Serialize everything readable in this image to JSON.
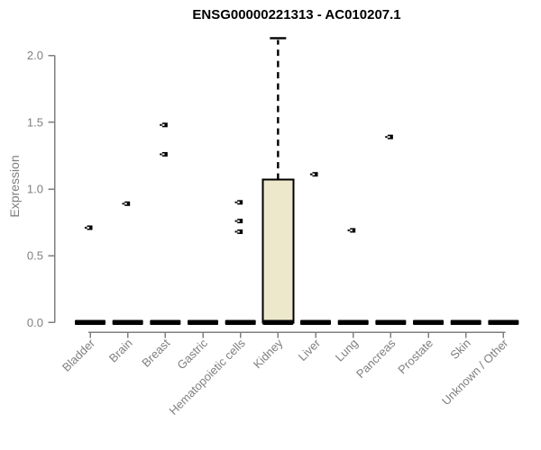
{
  "title": "ENSG00000221313 - AC010207.1",
  "chart_data": {
    "type": "boxplot",
    "title": "ENSG00000221313 - AC010207.1",
    "xlabel": "",
    "ylabel": "Expression",
    "ylim": [
      0.0,
      2.13
    ],
    "yticks": [
      0.0,
      0.5,
      1.0,
      1.5,
      2.0
    ],
    "ytick_labels": [
      "0.0",
      "0.5",
      "1.0",
      "1.5",
      "2.0"
    ],
    "grid": "off",
    "legend": "none",
    "categories": [
      "Bladder",
      "Brain",
      "Breast",
      "Gastric",
      "Hematopoietic cells",
      "Kidney",
      "Liver",
      "Lung",
      "Pancreas",
      "Prostate",
      "Skin",
      "Unknown / Other"
    ],
    "boxes": [
      {
        "category": "Bladder",
        "whisker_low": 0,
        "q1": 0,
        "median": 0,
        "q3": 0,
        "whisker_high": 0,
        "outliers": [
          0.71
        ]
      },
      {
        "category": "Brain",
        "whisker_low": 0,
        "q1": 0,
        "median": 0,
        "q3": 0,
        "whisker_high": 0,
        "outliers": [
          0.89
        ]
      },
      {
        "category": "Breast",
        "whisker_low": 0,
        "q1": 0,
        "median": 0,
        "q3": 0,
        "whisker_high": 0,
        "outliers": [
          1.48,
          1.26
        ]
      },
      {
        "category": "Gastric",
        "whisker_low": 0,
        "q1": 0,
        "median": 0,
        "q3": 0,
        "whisker_high": 0,
        "outliers": []
      },
      {
        "category": "Hematopoietic cells",
        "whisker_low": 0,
        "q1": 0,
        "median": 0,
        "q3": 0,
        "whisker_high": 0,
        "outliers": [
          0.9,
          0.76,
          0.68
        ]
      },
      {
        "category": "Kidney",
        "whisker_low": 0,
        "q1": 0,
        "median": 0,
        "q3": 1.07,
        "whisker_high": 2.13,
        "outliers": []
      },
      {
        "category": "Liver",
        "whisker_low": 0,
        "q1": 0,
        "median": 0,
        "q3": 0,
        "whisker_high": 0,
        "outliers": [
          1.11
        ]
      },
      {
        "category": "Lung",
        "whisker_low": 0,
        "q1": 0,
        "median": 0,
        "q3": 0,
        "whisker_high": 0,
        "outliers": [
          0.69
        ]
      },
      {
        "category": "Pancreas",
        "whisker_low": 0,
        "q1": 0,
        "median": 0,
        "q3": 0,
        "whisker_high": 0,
        "outliers": [
          1.39
        ]
      },
      {
        "category": "Prostate",
        "whisker_low": 0,
        "q1": 0,
        "median": 0,
        "q3": 0,
        "whisker_high": 0,
        "outliers": []
      },
      {
        "category": "Skin",
        "whisker_low": 0,
        "q1": 0,
        "median": 0,
        "q3": 0,
        "whisker_high": 0,
        "outliers": []
      },
      {
        "category": "Unknown / Other",
        "whisker_low": 0,
        "q1": 0,
        "median": 0,
        "q3": 0,
        "whisker_high": 0,
        "outliers": []
      }
    ],
    "colors": {
      "box_fill": "#EDE8CC",
      "box_border": "#000000",
      "median": "#000000",
      "whisker": "#000000",
      "outlier": "#000000",
      "axis": "#7F7F7F",
      "tick_label": "#7F7F7F",
      "title": "#000000"
    }
  }
}
